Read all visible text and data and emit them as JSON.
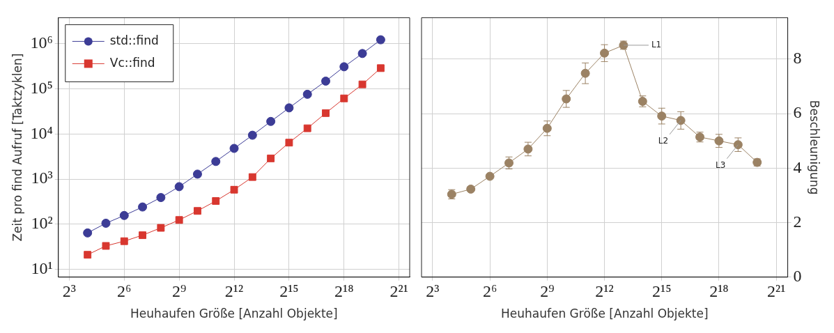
{
  "chart_data": [
    {
      "type": "line",
      "xlabel": "Heuhaufen Größe [Anzahl Objekte]",
      "ylabel": "Zeit pro find Aufruf [Taktzyklen]",
      "log": "xy",
      "grid": true,
      "legend": "top left",
      "marker": "circle",
      "line_style": "solid",
      "x": [
        16,
        32,
        64,
        128,
        256,
        512,
        1024,
        2048,
        4096,
        8192,
        16384,
        32768,
        65536,
        131072,
        262144,
        524288,
        1048576
      ],
      "xlim": [
        5.3,
        3140000
      ],
      "xticks": [
        {
          "value": 8,
          "label": "2³"
        },
        {
          "value": 64,
          "label": "2⁶"
        },
        {
          "value": 512,
          "label": "2⁹"
        },
        {
          "value": 4096,
          "label": "2¹²"
        },
        {
          "value": 32768,
          "label": "2¹⁵"
        },
        {
          "value": 262144,
          "label": "2¹⁸"
        },
        {
          "value": 2097152,
          "label": "2²¹"
        }
      ],
      "ylim": [
        6.7,
        3800000
      ],
      "yticks": [
        {
          "value": 10,
          "label": "10¹"
        },
        {
          "value": 100,
          "label": "10²"
        },
        {
          "value": 1000,
          "label": "10³"
        },
        {
          "value": 10000,
          "label": "10⁴"
        },
        {
          "value": 100000,
          "label": "10⁵"
        },
        {
          "value": 1000000,
          "label": "10⁶"
        }
      ],
      "series": [
        {
          "name": "std::find",
          "color": "#3c3c96",
          "marker": "circle",
          "values": [
            64,
            105,
            156,
            241,
            390,
            680,
            1290,
            2460,
            4800,
            9400,
            19000,
            38000,
            76000,
            149000,
            310000,
            610000,
            1230000
          ]
        },
        {
          "name": "Vc::find",
          "color": "#d8372f",
          "marker": "square",
          "values": [
            21,
            33,
            42,
            57,
            83,
            124,
            197,
            327,
            582,
            1110,
            2880,
            6440,
            13400,
            29100,
            61700,
            126000,
            289000
          ]
        }
      ]
    },
    {
      "type": "line",
      "xlabel": "Heuhaufen Größe [Anzahl Objekte]",
      "ylabel": "Beschleunigung",
      "log": "x",
      "grid": true,
      "marker": "circle",
      "line_style": "solid",
      "x": [
        16,
        32,
        64,
        128,
        256,
        512,
        1024,
        2048,
        4096,
        8192,
        16384,
        32768,
        65536,
        131072,
        262144,
        524288,
        1048576
      ],
      "xlim": [
        5.35,
        3180000
      ],
      "xticks": [
        {
          "value": 8,
          "label": "2³"
        },
        {
          "value": 64,
          "label": "2⁶"
        },
        {
          "value": 512,
          "label": "2⁹"
        },
        {
          "value": 4096,
          "label": "2¹²"
        },
        {
          "value": 32768,
          "label": "2¹⁵"
        },
        {
          "value": 262144,
          "label": "2¹⁸"
        },
        {
          "value": 2097152,
          "label": "2²¹"
        }
      ],
      "ylim": [
        0,
        9.52
      ],
      "yticks": [
        0,
        2,
        4,
        6,
        8
      ],
      "series": [
        {
          "color": "#9b8264",
          "values": [
            3.04,
            3.23,
            3.7,
            4.19,
            4.7,
            5.46,
            6.54,
            7.48,
            8.22,
            8.51,
            6.45,
            5.91,
            5.75,
            5.14,
            5.0,
            4.86,
            4.21
          ],
          "errors": [
            0.17,
            0.05,
            0.05,
            0.22,
            0.25,
            0.27,
            0.31,
            0.38,
            0.31,
            0.15,
            0.2,
            0.29,
            0.32,
            0.18,
            0.24,
            0.25,
            0.13
          ]
        }
      ],
      "annotations": [
        {
          "text": "L1",
          "x": 8192,
          "y": 8.51
        },
        {
          "text": "L2",
          "x": 65536,
          "y": 5.75
        },
        {
          "text": "L3",
          "x": 524288,
          "y": 4.86
        }
      ]
    }
  ]
}
